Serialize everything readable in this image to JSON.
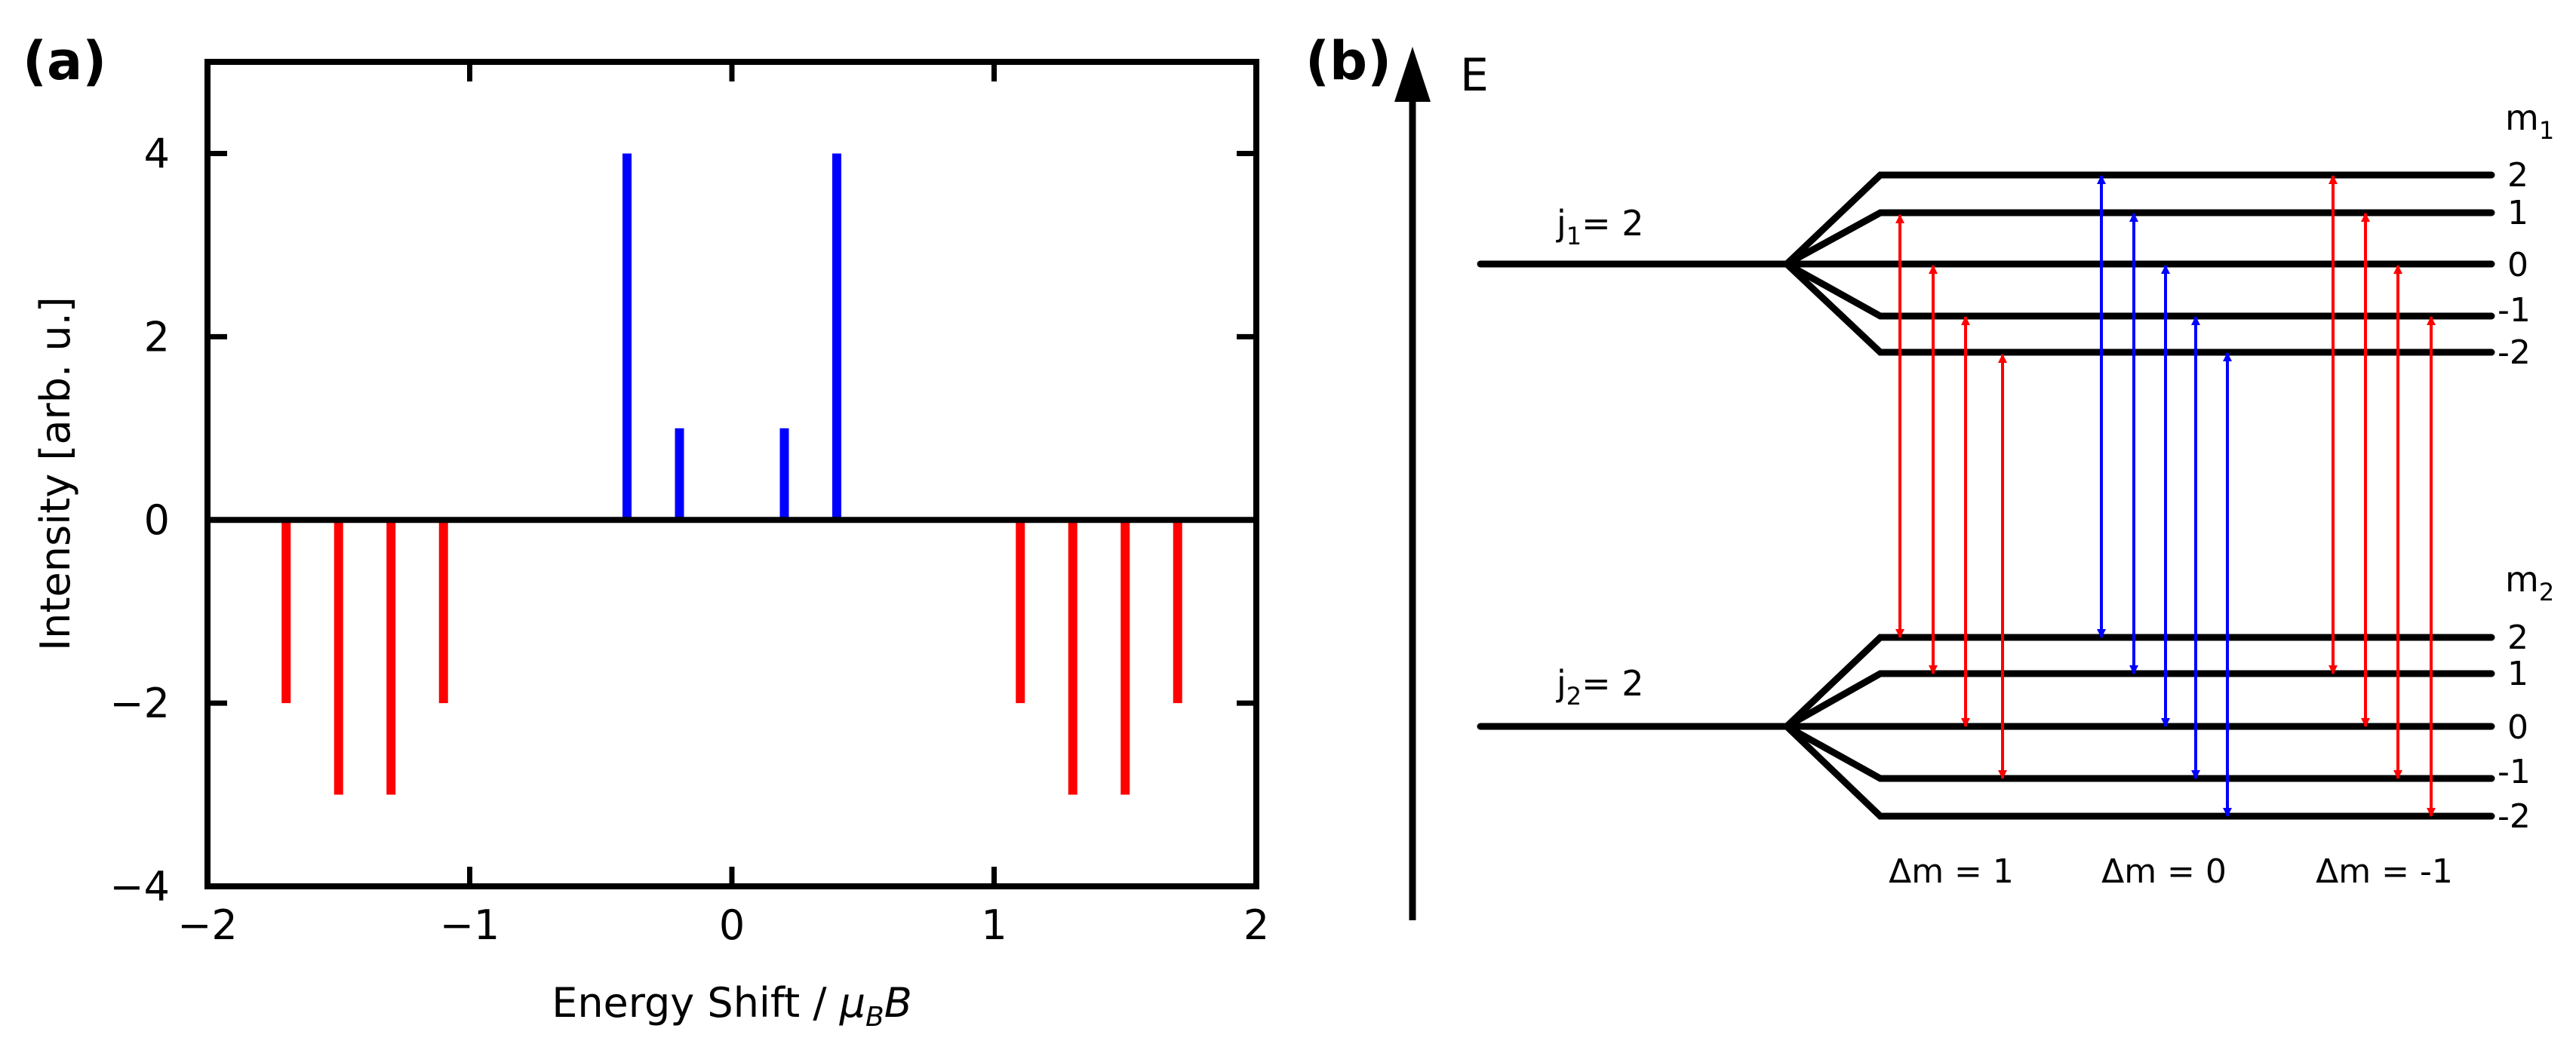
{
  "panels": {
    "a_label": "(a)",
    "b_label": "(b)"
  },
  "colors": {
    "sigma": "#0000ff",
    "pi": "#ff0000",
    "axis": "#000000"
  },
  "chart_data": {
    "type": "bar",
    "xlabel_prefix": "Energy Shift / ",
    "xlabel_mu": "μ",
    "xlabel_sub": "B",
    "xlabel_suffix": "B",
    "ylabel": "Intensity [arb. u.]",
    "xlim": [
      -2,
      2
    ],
    "ylim": [
      -4,
      5
    ],
    "xticks": [
      -2,
      -1,
      0,
      1,
      2
    ],
    "xtick_labels": [
      "−2",
      "−1",
      "0",
      "1",
      "2"
    ],
    "yticks": [
      -4,
      -2,
      0,
      2,
      4
    ],
    "ytick_labels": [
      "−4",
      "−2",
      "0",
      "2",
      "4"
    ],
    "grid": false,
    "series": [
      {
        "color": "#0000ff",
        "points": [
          {
            "x": -0.4,
            "y": 4
          },
          {
            "x": -0.2,
            "y": 1
          },
          {
            "x": 0.2,
            "y": 1
          },
          {
            "x": 0.4,
            "y": 4
          }
        ]
      },
      {
        "color": "#ff0000",
        "points": [
          {
            "x": -1.7,
            "y": -2
          },
          {
            "x": -1.5,
            "y": -3
          },
          {
            "x": -1.3,
            "y": -3
          },
          {
            "x": -1.1,
            "y": -2
          },
          {
            "x": 1.1,
            "y": -2
          },
          {
            "x": 1.3,
            "y": -3
          },
          {
            "x": 1.5,
            "y": -3
          },
          {
            "x": 1.7,
            "y": -2
          }
        ]
      }
    ]
  },
  "diagram": {
    "energy_axis_label": "E",
    "upper_level": {
      "j_label": "j",
      "j_sub": "1",
      "j_value": "= 2",
      "m_header": "m",
      "m_sub": "1",
      "m_values": [
        "2",
        "1",
        "0",
        "-1",
        "-2"
      ]
    },
    "lower_level": {
      "j_label": "j",
      "j_sub": "2",
      "j_value": "= 2",
      "m_header": "m",
      "m_sub": "2",
      "m_values": [
        "2",
        "1",
        "0",
        "-1",
        "-2"
      ]
    },
    "transition_groups": [
      {
        "label": "Δm = 1",
        "color": "#ff0000"
      },
      {
        "label": "Δm = 0",
        "color": "#0000ff"
      },
      {
        "label": "Δm = -1",
        "color": "#ff0000"
      }
    ]
  }
}
